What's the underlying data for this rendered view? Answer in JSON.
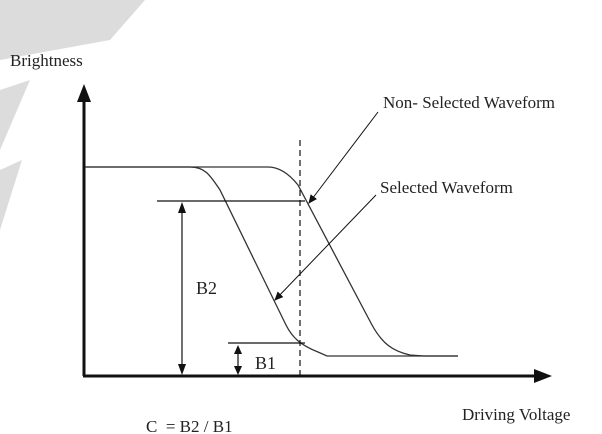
{
  "diagram": {
    "y_axis_label": "Brightness",
    "x_axis_label": "Driving Voltage",
    "callouts": {
      "non_selected": "Non- Selected Waveform",
      "selected": "Selected Waveform"
    },
    "levels": {
      "b2": "B2",
      "b1": "B1"
    },
    "formula": "C  = B2 / B1",
    "colors": {
      "ink": "#111111",
      "watermark": "#d8d8d8"
    }
  }
}
